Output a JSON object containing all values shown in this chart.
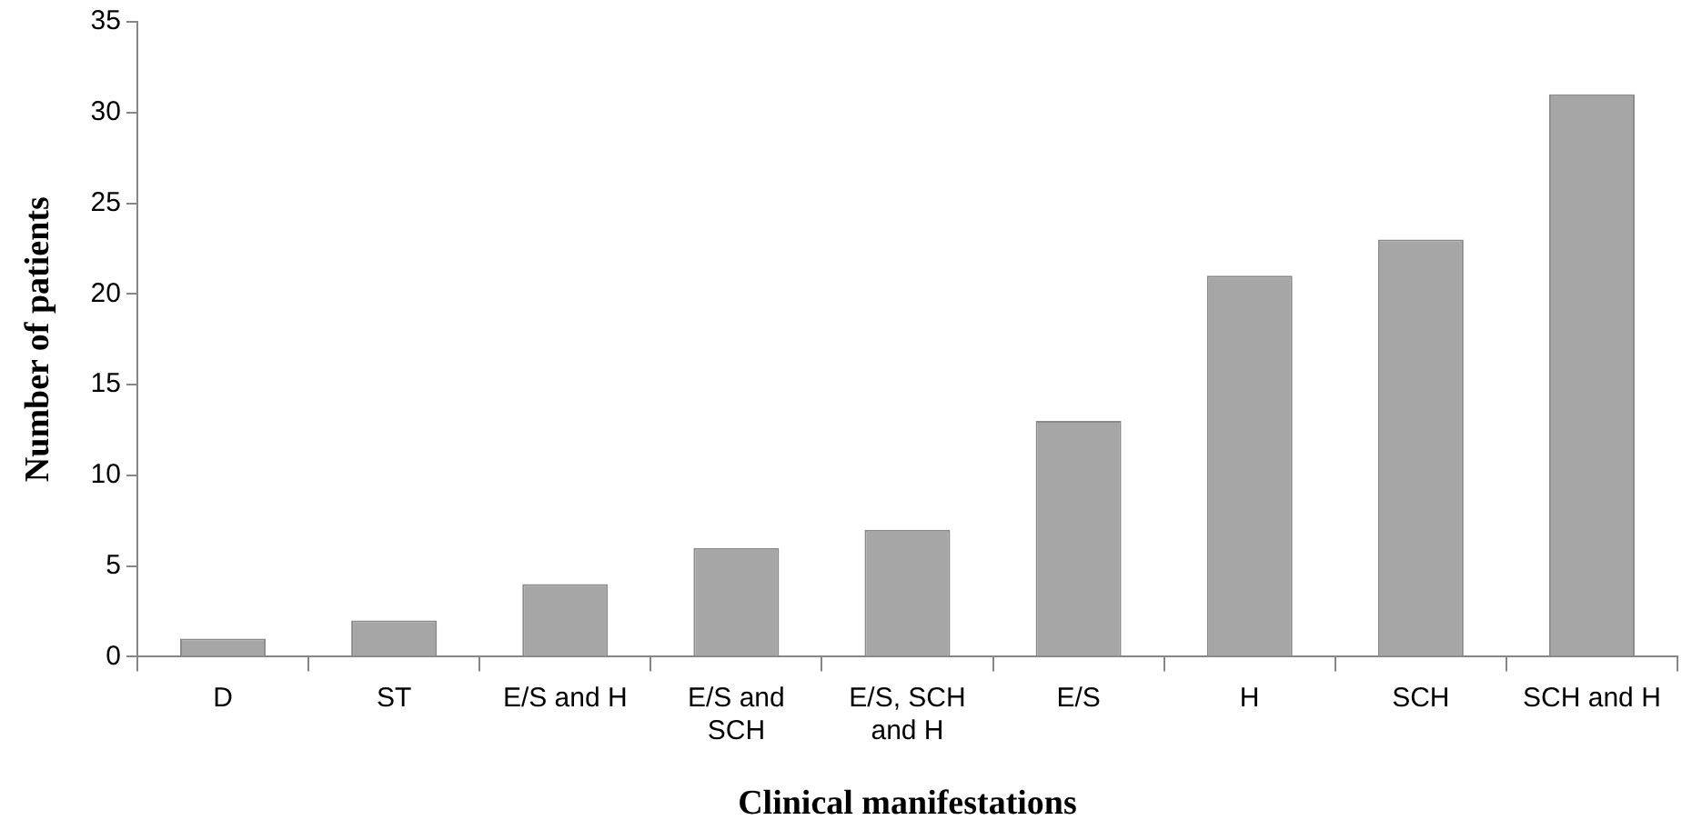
{
  "chart_data": {
    "type": "bar",
    "xlabel": "Clinical manifestations",
    "ylabel": "Number of patients",
    "categories": [
      "D",
      "ST",
      "E/S and H",
      "E/S and SCH",
      "E/S, SCH and H",
      "E/S",
      "H",
      "SCH",
      "SCH and H"
    ],
    "values": [
      1,
      2,
      4,
      6,
      7,
      13,
      21,
      23,
      31
    ],
    "color": "#a6a6a6",
    "ylim": [
      0,
      35
    ],
    "yticks": [
      0,
      5,
      10,
      15,
      20,
      25,
      30,
      35
    ],
    "grid": false,
    "legend": false
  }
}
